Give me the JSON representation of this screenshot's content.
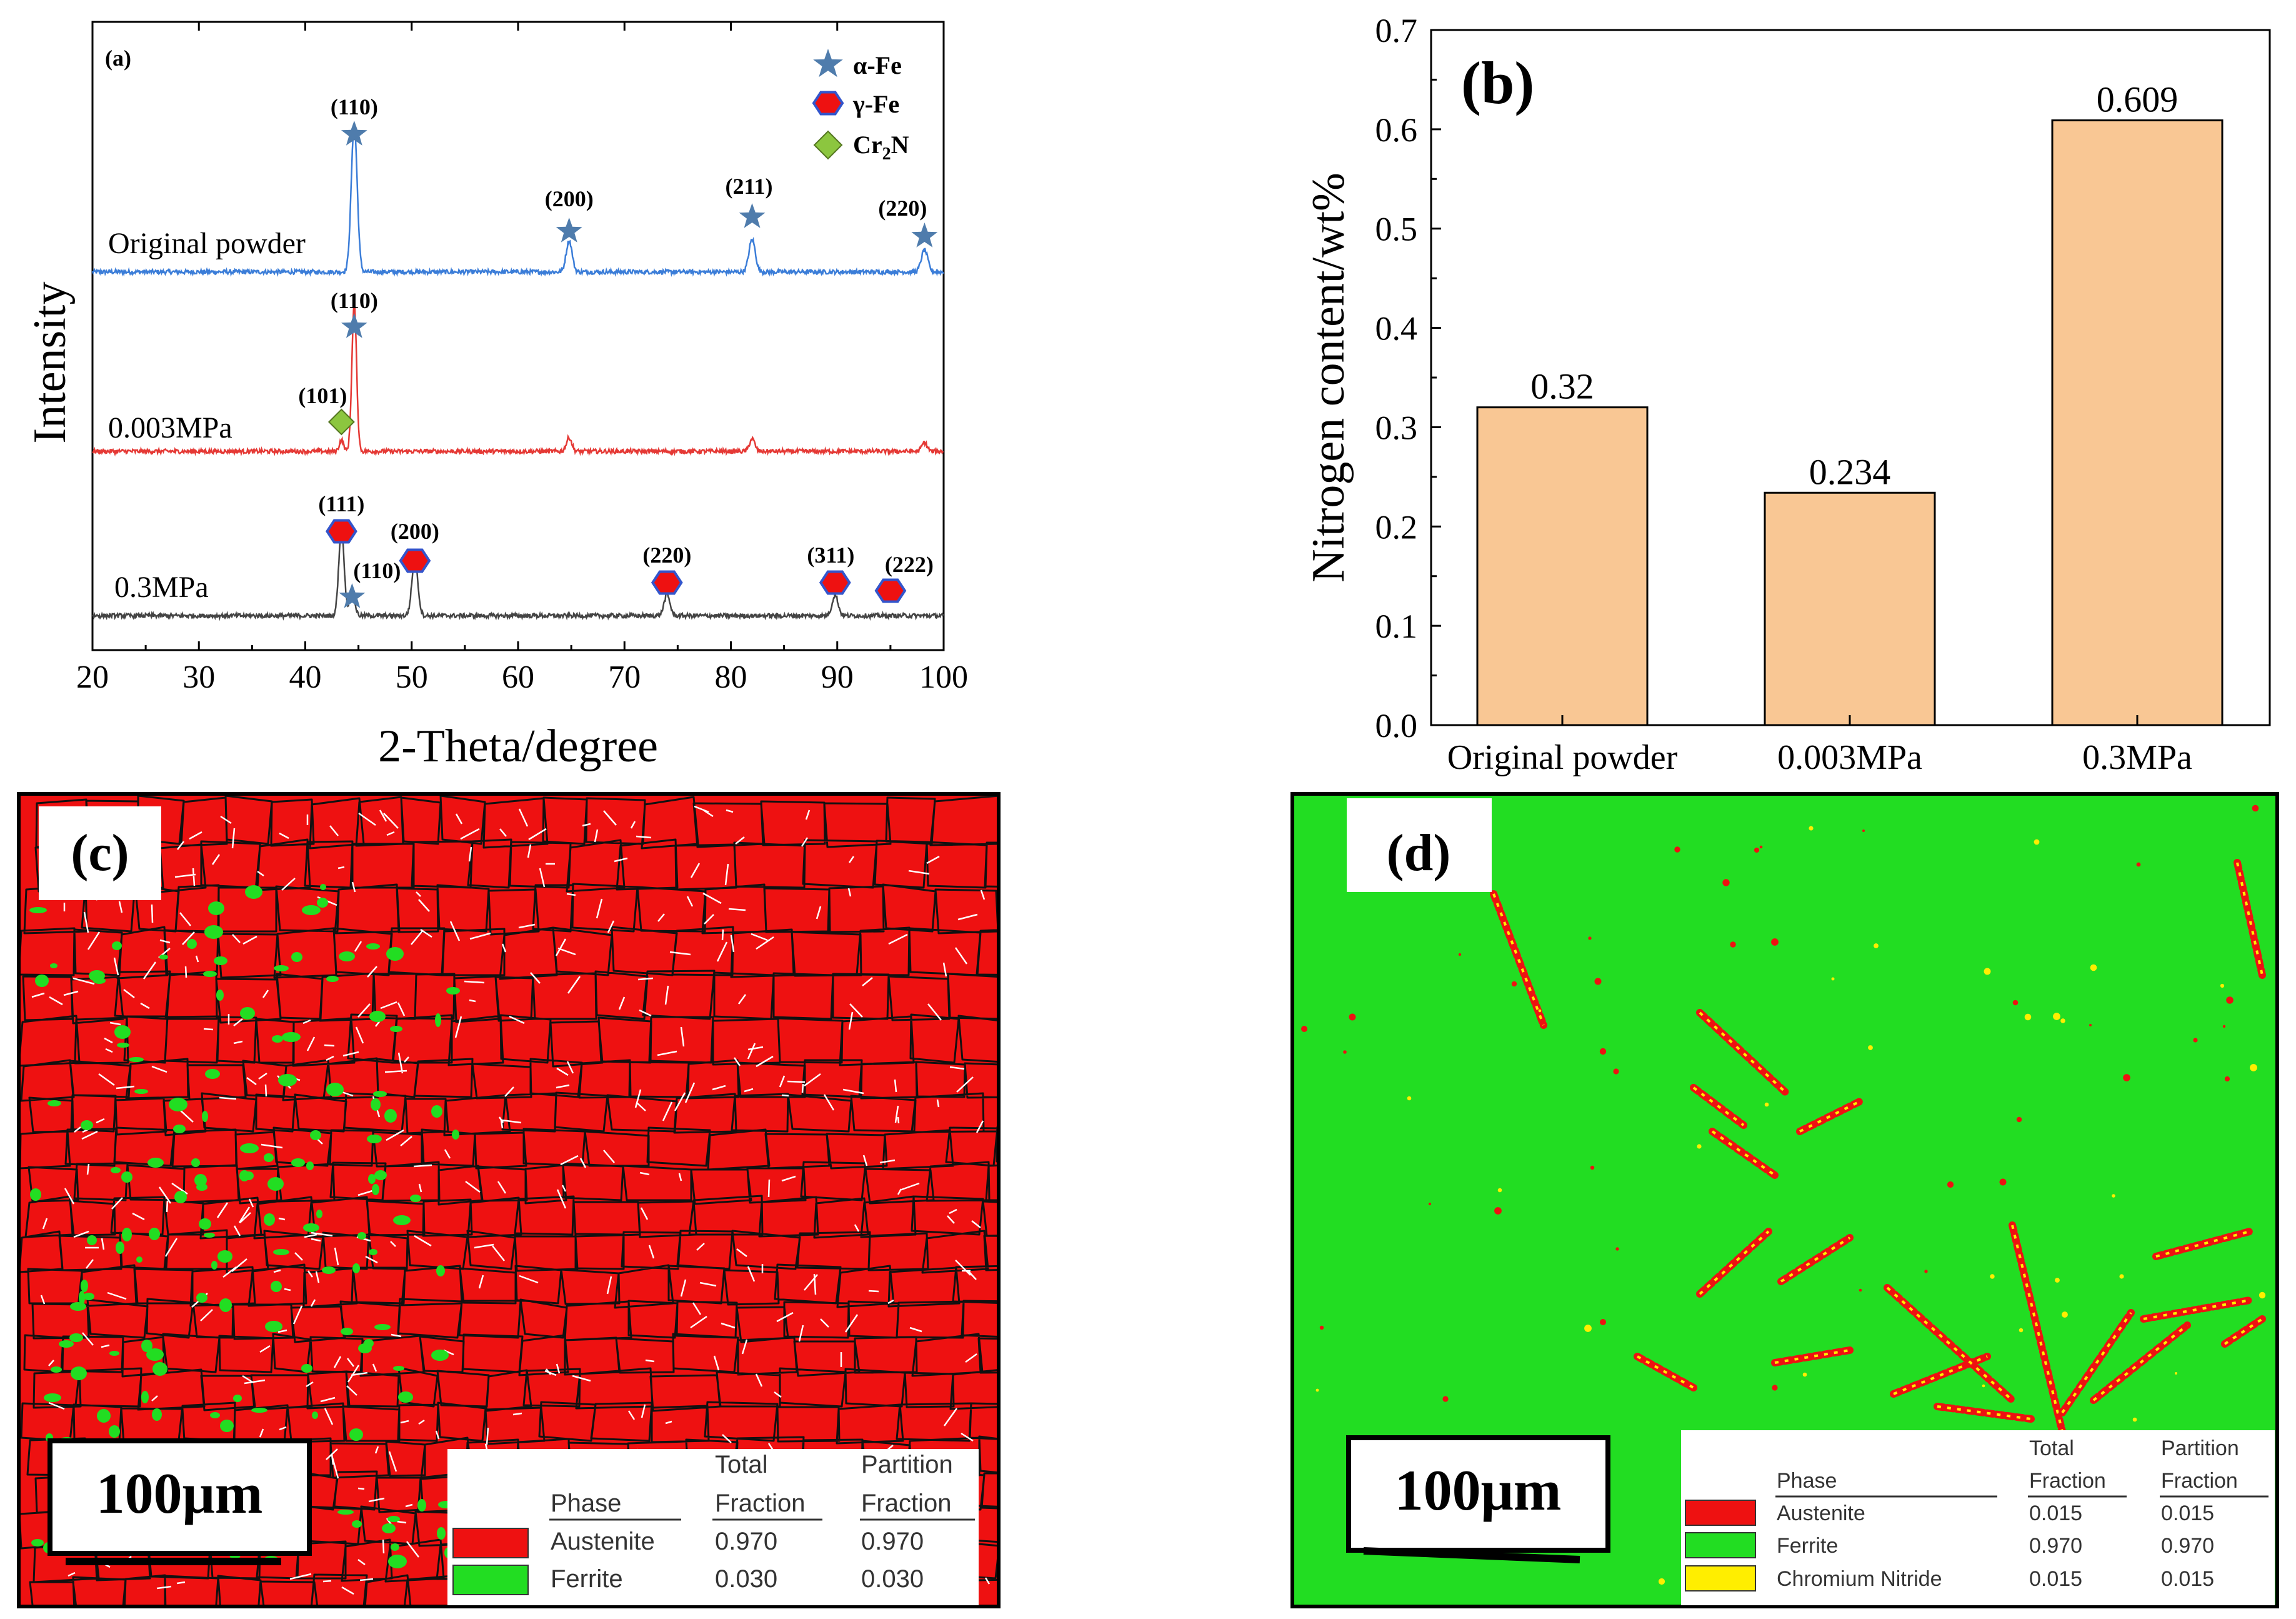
{
  "colors": {
    "alpha_fe": "#4f7cac",
    "gamma_fe": "#ee1111",
    "cr2n": "#8cc63f",
    "curve_original": "#3b7dd8",
    "curve_003": "#e53935",
    "curve_03": "#444444",
    "bar_fill": "#f9c794",
    "austenite": "#ee1111",
    "ferrite": "#22dd22",
    "chromium_nitride": "#ffee00"
  },
  "panel_a": {
    "label": "(a)",
    "xlabel": "2-Theta/degree",
    "ylabel": "Intensity",
    "xticks": [
      "20",
      "30",
      "40",
      "50",
      "60",
      "70",
      "80",
      "90",
      "100"
    ],
    "legend": {
      "alpha": "α-Fe",
      "gamma": "γ-Fe",
      "cr2n_main": "Cr",
      "cr2n_sub": "2",
      "cr2n_tail": "N"
    },
    "curves": [
      "Original powder",
      "0.003MPa",
      "0.3MPa"
    ]
  },
  "chart_data": [
    {
      "type": "line",
      "panel": "(a)",
      "title": "",
      "xlabel": "2-Theta/degree",
      "ylabel": "Intensity",
      "xlim": [
        20,
        100
      ],
      "series": [
        {
          "name": "Original powder",
          "peaks_2theta": [
            44.6,
            64.8,
            82.0,
            98.2
          ],
          "labels": [
            {
              "hkl": "(110)",
              "phase": "α-Fe",
              "x": 44.6
            },
            {
              "hkl": "(200)",
              "phase": "α-Fe",
              "x": 64.8
            },
            {
              "hkl": "(211)",
              "phase": "α-Fe",
              "x": 82.0
            },
            {
              "hkl": "(220)",
              "phase": "α-Fe",
              "x": 98.2
            }
          ]
        },
        {
          "name": "0.003MPa",
          "peaks_2theta": [
            43.4,
            44.6,
            64.8,
            82.0,
            98.2
          ],
          "labels": [
            {
              "hkl": "(101)",
              "phase": "Cr2N",
              "x": 43.4
            },
            {
              "hkl": "(110)",
              "phase": "α-Fe",
              "x": 44.6
            }
          ]
        },
        {
          "name": "0.3MPa",
          "peaks_2theta": [
            43.4,
            44.4,
            50.3,
            74.0,
            89.8,
            95.0
          ],
          "labels": [
            {
              "hkl": "(111)",
              "phase": "γ-Fe",
              "x": 43.4
            },
            {
              "hkl": "(110)",
              "phase": "α-Fe",
              "x": 44.4
            },
            {
              "hkl": "(200)",
              "phase": "γ-Fe",
              "x": 50.3
            },
            {
              "hkl": "(220)",
              "phase": "γ-Fe",
              "x": 74.0
            },
            {
              "hkl": "(311)",
              "phase": "γ-Fe",
              "x": 89.8
            },
            {
              "hkl": "(222)",
              "phase": "γ-Fe",
              "x": 95.0
            }
          ]
        }
      ]
    },
    {
      "type": "bar",
      "panel": "(b)",
      "title": "",
      "categories": [
        "Original powder",
        "0.003MPa",
        "0.3MPa"
      ],
      "values": [
        0.32,
        0.234,
        0.609
      ],
      "value_labels": [
        "0.32",
        "0.234",
        "0.609"
      ],
      "xlabel": "",
      "ylabel": "Nitrogen content/wt%",
      "ylim": [
        0,
        0.7
      ],
      "yticks": [
        "0.0",
        "0.1",
        "0.2",
        "0.3",
        "0.4",
        "0.5",
        "0.6",
        "0.7"
      ]
    },
    {
      "type": "table",
      "panel": "(c)",
      "scale_bar": "100μm",
      "header": [
        "Phase",
        "Total Fraction",
        "Partition Fraction"
      ],
      "rows": [
        [
          "Austenite",
          "0.970",
          "0.970"
        ],
        [
          "Ferrite",
          "0.030",
          "0.030"
        ]
      ]
    },
    {
      "type": "table",
      "panel": "(d)",
      "scale_bar": "100μm",
      "header": [
        "Phase",
        "Total Fraction",
        "Partition Fraction"
      ],
      "rows": [
        [
          "Austenite",
          "0.015",
          "0.015"
        ],
        [
          "Ferrite",
          "0.970",
          "0.970"
        ],
        [
          "Chromium Nitride",
          "0.015",
          "0.015"
        ]
      ]
    }
  ],
  "panel_b": {
    "label": "(b)"
  },
  "panel_c": {
    "label": "(c)",
    "scale": "100μm",
    "h_phase": "Phase",
    "h_total_1": "Total",
    "h_total_2": "Fraction",
    "h_part_1": "Partition",
    "h_part_2": "Fraction",
    "rows": [
      {
        "phase": "Austenite",
        "total": "0.970",
        "partition": "0.970"
      },
      {
        "phase": "Ferrite",
        "total": "0.030",
        "partition": "0.030"
      }
    ]
  },
  "panel_d": {
    "label": "(d)",
    "scale": "100μm",
    "h_phase": "Phase",
    "h_total_1": "Total",
    "h_total_2": "Fraction",
    "h_part_1": "Partition",
    "h_part_2": "Fraction",
    "rows": [
      {
        "phase": "Austenite",
        "total": "0.015",
        "partition": "0.015"
      },
      {
        "phase": "Ferrite",
        "total": "0.970",
        "partition": "0.970"
      },
      {
        "phase": "Chromium Nitride",
        "total": "0.015",
        "partition": "0.015"
      }
    ]
  }
}
